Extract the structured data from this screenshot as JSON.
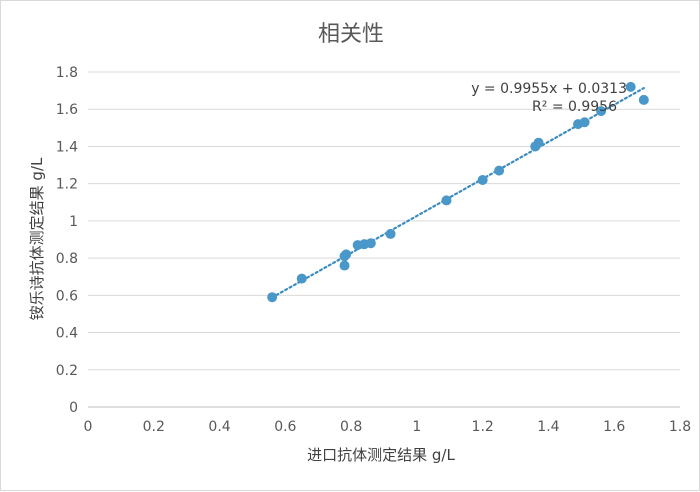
{
  "chart_data": {
    "type": "scatter",
    "title": "相关性",
    "xlabel": "进口抗体测定结果  g/L",
    "ylabel": "铵乐诗抗体测定结果  g/L",
    "xlim": [
      0,
      1.8
    ],
    "ylim": [
      0,
      1.8
    ],
    "xticks": [
      0,
      0.2,
      0.4,
      0.6,
      0.8,
      1,
      1.2,
      1.4,
      1.6,
      1.8
    ],
    "yticks": [
      0,
      0.2,
      0.4,
      0.6,
      0.8,
      1,
      1.2,
      1.4,
      1.6,
      1.8
    ],
    "xtick_labels": [
      "0",
      "0.2",
      "0.4",
      "0.6",
      "0.8",
      "1",
      "1.2",
      "1.4",
      "1.6",
      "1.8"
    ],
    "ytick_labels": [
      "0",
      "0.2",
      "0.4",
      "0.6",
      "0.8",
      "1",
      "1.2",
      "1.4",
      "1.6",
      "1.8"
    ],
    "grid": "horizontal",
    "marker_color": "#4a97c9",
    "trendline_color": "#3c8dbf",
    "series": [
      {
        "points": [
          {
            "x": 0.56,
            "y": 0.59
          },
          {
            "x": 0.65,
            "y": 0.69
          },
          {
            "x": 0.78,
            "y": 0.76
          },
          {
            "x": 0.78,
            "y": 0.81
          },
          {
            "x": 0.785,
            "y": 0.82
          },
          {
            "x": 0.82,
            "y": 0.87
          },
          {
            "x": 0.84,
            "y": 0.875
          },
          {
            "x": 0.86,
            "y": 0.88
          },
          {
            "x": 0.92,
            "y": 0.93
          },
          {
            "x": 1.09,
            "y": 1.11
          },
          {
            "x": 1.2,
            "y": 1.22
          },
          {
            "x": 1.25,
            "y": 1.27
          },
          {
            "x": 1.36,
            "y": 1.4
          },
          {
            "x": 1.37,
            "y": 1.42
          },
          {
            "x": 1.49,
            "y": 1.52
          },
          {
            "x": 1.51,
            "y": 1.53
          },
          {
            "x": 1.56,
            "y": 1.59
          },
          {
            "x": 1.65,
            "y": 1.72
          },
          {
            "x": 1.69,
            "y": 1.65
          }
        ]
      }
    ],
    "trendline": {
      "type": "linear",
      "slope": 0.9955,
      "intercept": 0.0313,
      "x_range": [
        0.56,
        1.69
      ],
      "equation": "y = 0.9955x + 0.0313",
      "r_squared_label": "R² = 0.9956"
    }
  }
}
